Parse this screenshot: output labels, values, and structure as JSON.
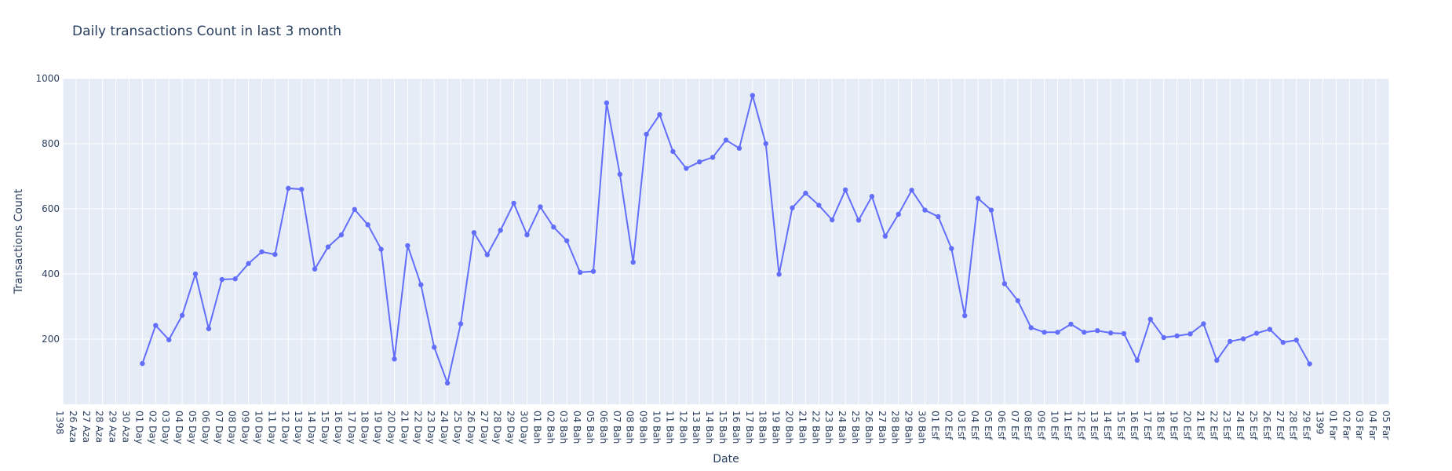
{
  "chart_data": {
    "type": "line",
    "title": "Daily transactions Count in last 3 month",
    "xlabel": "Date",
    "ylabel": "Transactions Count",
    "ylim": [
      0,
      1000
    ],
    "y_ticks": [
      200,
      400,
      600,
      800,
      1000
    ],
    "grid": true,
    "line_color": "#636efa",
    "plot_bg_color": "#e5ecf6",
    "x_tick_labels": [
      "1398",
      "26 Aza",
      "27 Aza",
      "28 Aza",
      "29 Aza",
      "30 Aza",
      "01 Day",
      "02 Day",
      "03 Day",
      "04 Day",
      "05 Day",
      "06 Day",
      "07 Day",
      "08 Day",
      "09 Day",
      "10 Day",
      "11 Day",
      "12 Day",
      "13 Day",
      "14 Day",
      "15 Day",
      "16 Day",
      "17 Day",
      "18 Day",
      "19 Day",
      "20 Day",
      "21 Day",
      "22 Day",
      "23 Day",
      "24 Day",
      "25 Day",
      "26 Day",
      "27 Day",
      "28 Day",
      "29 Day",
      "30 Day",
      "01 Bah",
      "02 Bah",
      "03 Bah",
      "04 Bah",
      "05 Bah",
      "06 Bah",
      "07 Bah",
      "08 Bah",
      "09 Bah",
      "10 Bah",
      "11 Bah",
      "12 Bah",
      "13 Bah",
      "14 Bah",
      "15 Bah",
      "16 Bah",
      "17 Bah",
      "18 Bah",
      "19 Bah",
      "20 Bah",
      "21 Bah",
      "22 Bah",
      "23 Bah",
      "24 Bah",
      "25 Bah",
      "26 Bah",
      "27 Bah",
      "28 Bah",
      "29 Bah",
      "30 Bah",
      "01 Esf",
      "02 Esf",
      "03 Esf",
      "04 Esf",
      "05 Esf",
      "06 Esf",
      "07 Esf",
      "08 Esf",
      "09 Esf",
      "10 Esf",
      "11 Esf",
      "12 Esf",
      "13 Esf",
      "14 Esf",
      "15 Esf",
      "16 Esf",
      "17 Esf",
      "18 Esf",
      "19 Esf",
      "20 Esf",
      "21 Esf",
      "22 Esf",
      "23 Esf",
      "24 Esf",
      "25 Esf",
      "26 Esf",
      "27 Esf",
      "28 Esf",
      "29 Esf",
      "1399",
      "01 Far",
      "02 Far",
      "03 Far",
      "04 Far",
      "05 Far"
    ],
    "x": [
      "01 Day",
      "02 Day",
      "03 Day",
      "04 Day",
      "05 Day",
      "06 Day",
      "07 Day",
      "08 Day",
      "09 Day",
      "10 Day",
      "11 Day",
      "12 Day",
      "13 Day",
      "14 Day",
      "15 Day",
      "16 Day",
      "17 Day",
      "18 Day",
      "19 Day",
      "20 Day",
      "21 Day",
      "22 Day",
      "23 Day",
      "24 Day",
      "25 Day",
      "26 Day",
      "27 Day",
      "28 Day",
      "29 Day",
      "30 Day",
      "01 Bah",
      "02 Bah",
      "03 Bah",
      "04 Bah",
      "05 Bah",
      "06 Bah",
      "07 Bah",
      "08 Bah",
      "09 Bah",
      "10 Bah",
      "11 Bah",
      "12 Bah",
      "13 Bah",
      "14 Bah",
      "15 Bah",
      "16 Bah",
      "17 Bah",
      "18 Bah",
      "19 Bah",
      "20 Bah",
      "21 Bah",
      "22 Bah",
      "23 Bah",
      "24 Bah",
      "25 Bah",
      "26 Bah",
      "27 Bah",
      "28 Bah",
      "29 Bah",
      "30 Bah",
      "01 Esf",
      "02 Esf",
      "03 Esf",
      "04 Esf",
      "05 Esf",
      "06 Esf",
      "07 Esf",
      "08 Esf",
      "09 Esf",
      "10 Esf",
      "11 Esf",
      "12 Esf",
      "13 Esf",
      "14 Esf",
      "15 Esf",
      "16 Esf",
      "17 Esf",
      "18 Esf",
      "19 Esf",
      "20 Esf",
      "21 Esf",
      "22 Esf",
      "23 Esf",
      "24 Esf",
      "25 Esf",
      "26 Esf",
      "27 Esf",
      "28 Esf",
      "29 Esf"
    ],
    "values": [
      125,
      242,
      198,
      273,
      400,
      232,
      383,
      385,
      432,
      468,
      460,
      663,
      660,
      415,
      483,
      520,
      598,
      551,
      476,
      139,
      487,
      367,
      175,
      65,
      247,
      527,
      459,
      534,
      617,
      520,
      606,
      544,
      502,
      405,
      408,
      925,
      706,
      436,
      829,
      889,
      776,
      724,
      744,
      758,
      811,
      786,
      948,
      800,
      399,
      603,
      648,
      611,
      566,
      658,
      565,
      638,
      516,
      583,
      657,
      596,
      576,
      478,
      272,
      632,
      596,
      370,
      318,
      235,
      221,
      221,
      246,
      221,
      226,
      219,
      217,
      135,
      261,
      205,
      210,
      216,
      247,
      135,
      193,
      201,
      218,
      230,
      190,
      197,
      124
    ]
  }
}
